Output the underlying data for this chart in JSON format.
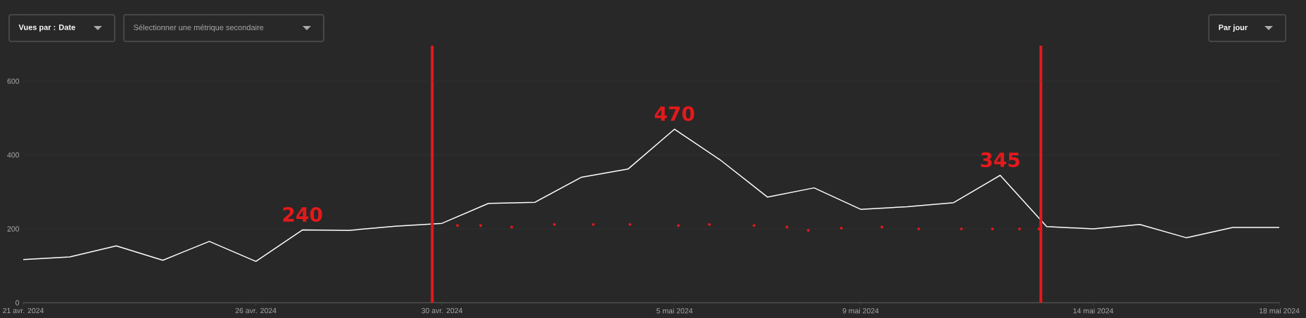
{
  "chart_data": {
    "type": "line",
    "xlim": [
      "2024-04-21",
      "2024-05-18"
    ],
    "ylim": [
      0,
      600
    ],
    "xticks": [
      {
        "value": "2024-04-21",
        "label": "21 avr. 2024"
      },
      {
        "value": "2024-04-26",
        "label": "26 avr. 2024"
      },
      {
        "value": "2024-04-30",
        "label": "30 avr. 2024"
      },
      {
        "value": "2024-05-05",
        "label": "5 mai 2024"
      },
      {
        "value": "2024-05-09",
        "label": "9 mai 2024"
      },
      {
        "value": "2024-05-14",
        "label": "14 mai 2024"
      },
      {
        "value": "2024-05-18",
        "label": "18 mai 2024"
      }
    ],
    "yticks": [
      0,
      200,
      400,
      600
    ],
    "grid": "y",
    "series": [
      {
        "color": "#ffffff",
        "marker": "none",
        "x": [
          "2024-04-21",
          "2024-04-22",
          "2024-04-23",
          "2024-04-24",
          "2024-04-25",
          "2024-04-26",
          "2024-04-27",
          "2024-04-28",
          "2024-04-29",
          "2024-04-30",
          "2024-05-01",
          "2024-05-02",
          "2024-05-03",
          "2024-05-04",
          "2024-05-05",
          "2024-05-06",
          "2024-05-07",
          "2024-05-08",
          "2024-05-09",
          "2024-05-10",
          "2024-05-11",
          "2024-05-12",
          "2024-05-13",
          "2024-05-14",
          "2024-05-15",
          "2024-05-16",
          "2024-05-17",
          "2024-05-18"
        ],
        "values": [
          117,
          124,
          154,
          115,
          166,
          112,
          197,
          196,
          207,
          215,
          269,
          272,
          340,
          362,
          470,
          385,
          286,
          311,
          253,
          260,
          271,
          345,
          206,
          200,
          212,
          176,
          204,
          204
        ]
      },
      {
        "type": "scatter",
        "color": "#e3191c",
        "marker": "circle",
        "x": [
          "2024-04-30T08:00",
          "2024-04-30T20:00",
          "2024-05-01T12:00",
          "2024-05-02T10:00",
          "2024-05-03T06:00",
          "2024-05-04T01:00",
          "2024-05-05T02:00",
          "2024-05-05T18:00",
          "2024-05-06T17:00",
          "2024-05-07T10:00",
          "2024-05-07T21:00",
          "2024-05-08T14:00",
          "2024-05-09T11:00",
          "2024-05-10T06:00",
          "2024-05-11T04:00",
          "2024-05-11T20:00",
          "2024-05-12T10:00",
          "2024-05-12T20:00"
        ],
        "values": [
          209,
          209,
          205,
          212,
          212,
          212,
          209,
          212,
          209,
          205,
          196,
          202,
          205,
          200,
          200,
          200,
          200,
          200
        ]
      }
    ],
    "ref_lines": [
      {
        "axis": "x",
        "value": "2024-04-29T19:00",
        "color": "#e3191c"
      },
      {
        "axis": "x",
        "value": "2024-05-12T21:00",
        "color": "#e3191c"
      }
    ],
    "annotations": [
      "Vues par : Date",
      "Sélectionner une métrique secondaire",
      "Par jour",
      {
        "text": "240",
        "x": "2024-04-27",
        "y": 197
      },
      {
        "text": "470",
        "x": "2024-05-05",
        "y": 470
      },
      {
        "text": "345",
        "x": "2024-05-12",
        "y": 345
      }
    ]
  }
}
